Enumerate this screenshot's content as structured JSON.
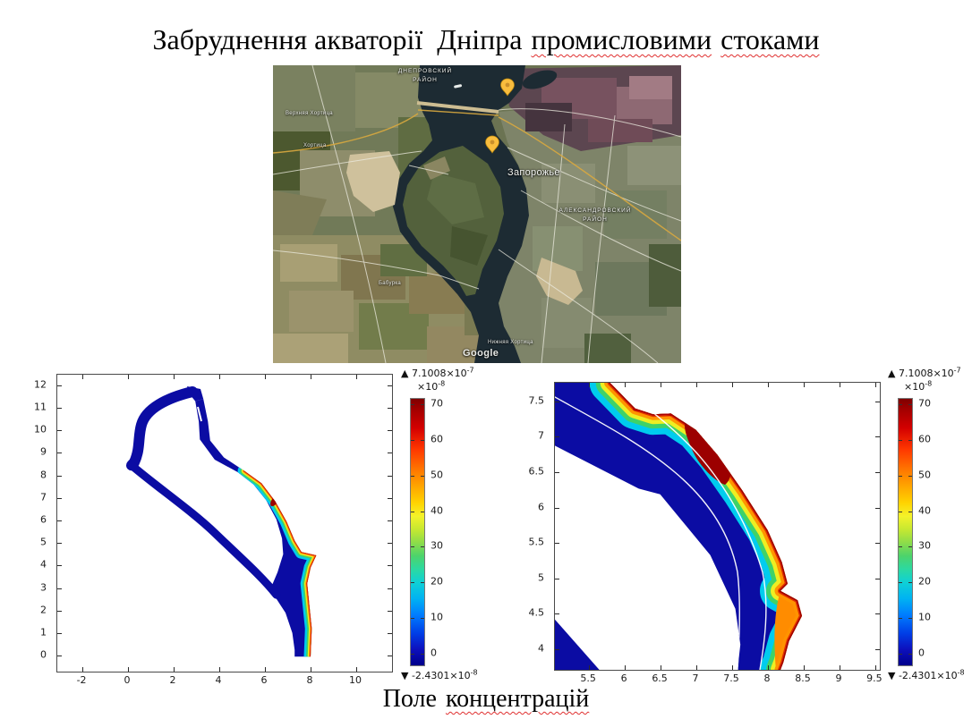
{
  "title": {
    "lead": "Забруднення акваторії  Дніпра",
    "word1": "промисловими",
    "word2": "стоками"
  },
  "caption": {
    "lead": "Поле",
    "word1": "концентрацій"
  },
  "map": {
    "attribution": "Google",
    "labels": {
      "district_top_1": "ДНЕПРОВСКИЙ",
      "district_top_2": "РАЙОН",
      "city": "Запорожье",
      "district_bottom_1": "АЛЕКСАНДРОВСКИЙ",
      "district_bottom_2": "РАЙОН",
      "town_upper_khortytsia": "Верхняя Хортица",
      "town_khortytsia": "Хортица",
      "town_baburka": "Бабурка",
      "town_lower_khortytsia": "Нижняя Хортица"
    },
    "pin_color": "#f9bd3e",
    "water_color": "#1d2b33"
  },
  "plots": {
    "left": {
      "x_ticks": [
        "-2",
        "0",
        "2",
        "4",
        "6",
        "8",
        "10"
      ],
      "y_ticks": [
        "12",
        "11",
        "10",
        "9",
        "8",
        "7",
        "6",
        "5",
        "4",
        "3",
        "2",
        "1",
        "0"
      ]
    },
    "right": {
      "x_ticks": [
        "5.5",
        "6",
        "6.5",
        "7",
        "7.5",
        "8",
        "8.5",
        "9",
        "9.5"
      ],
      "y_ticks": [
        "7.5",
        "7",
        "6.5",
        "6",
        "5.5",
        "5",
        "4.5",
        "4"
      ]
    },
    "colorbar": {
      "max_prefix": "▲ 7.1008×10",
      "max_exp": "-7",
      "unit_prefix": "×10",
      "unit_exp": "-8",
      "ticks": [
        "70",
        "60",
        "50",
        "40",
        "30",
        "20",
        "10",
        "0"
      ],
      "min_prefix": "▼ -2.4301×10",
      "min_exp": "-8"
    }
  },
  "chart_data": [
    {
      "type": "heatmap",
      "title": "Поле концентрацій — вся акваторія Дніпра",
      "xlim": [
        -3.1,
        11.6
      ],
      "ylim": [
        -0.7,
        12.5
      ],
      "x_ticks": [
        -2,
        0,
        2,
        4,
        6,
        8,
        10
      ],
      "y_ticks": [
        0,
        1,
        2,
        3,
        4,
        5,
        6,
        7,
        8,
        9,
        10,
        11,
        12
      ],
      "colormap": "rainbow-jet",
      "colorbar_unit": "×10⁻⁸",
      "colorbar_ticks": [
        0,
        10,
        20,
        30,
        40,
        50,
        60,
        70
      ],
      "max_value": "7.1008×10⁻⁷",
      "min_value": "-2.4301×10⁻⁸",
      "grid": false,
      "legend_position": "right-colorbar"
    },
    {
      "type": "heatmap",
      "title": "Поле концентрацій — збільшений фрагмент правого берега",
      "xlim": [
        5.0,
        9.6
      ],
      "ylim": [
        3.7,
        7.8
      ],
      "x_ticks": [
        5.5,
        6,
        6.5,
        7,
        7.5,
        8,
        8.5,
        9,
        9.5
      ],
      "y_ticks": [
        4,
        4.5,
        5,
        5.5,
        6,
        6.5,
        7,
        7.5
      ],
      "colormap": "rainbow-jet",
      "colorbar_unit": "×10⁻⁸",
      "colorbar_ticks": [
        0,
        10,
        20,
        30,
        40,
        50,
        60,
        70
      ],
      "max_value": "7.1008×10⁻⁷",
      "min_value": "-2.4301×10⁻⁸",
      "grid": false,
      "legend_position": "right-colorbar"
    }
  ]
}
